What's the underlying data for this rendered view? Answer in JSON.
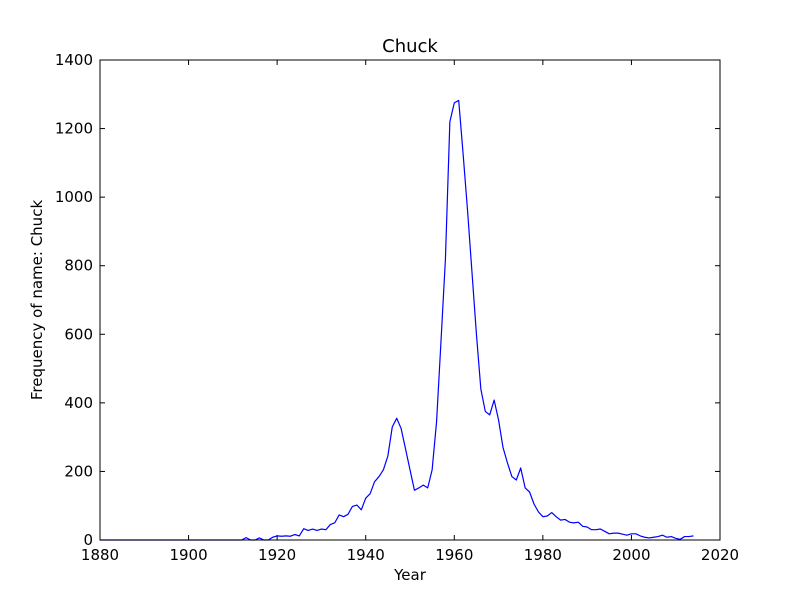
{
  "chart_data": {
    "type": "line",
    "title": "Chuck",
    "xlabel": "Year",
    "ylabel": "Frequency of name: Chuck",
    "xlim": [
      1880,
      2020
    ],
    "ylim": [
      0,
      1400
    ],
    "x_ticks": [
      1880,
      1900,
      1920,
      1940,
      1960,
      1980,
      2000,
      2020
    ],
    "y_ticks": [
      0,
      200,
      400,
      600,
      800,
      1000,
      1200,
      1400
    ],
    "grid": false,
    "line_color": "#0000ff",
    "series": [
      {
        "x": [
          1880,
          1881,
          1882,
          1883,
          1884,
          1885,
          1886,
          1887,
          1888,
          1889,
          1890,
          1891,
          1892,
          1893,
          1894,
          1895,
          1896,
          1897,
          1898,
          1899,
          1900,
          1901,
          1902,
          1903,
          1904,
          1905,
          1906,
          1907,
          1908,
          1909,
          1910,
          1911,
          1912,
          1913,
          1914,
          1915,
          1916,
          1917,
          1918,
          1919,
          1920,
          1921,
          1922,
          1923,
          1924,
          1925,
          1926,
          1927,
          1928,
          1929,
          1930,
          1931,
          1932,
          1933,
          1934,
          1935,
          1936,
          1937,
          1938,
          1939,
          1940,
          1941,
          1942,
          1943,
          1944,
          1945,
          1946,
          1947,
          1948,
          1949,
          1950,
          1951,
          1952,
          1953,
          1954,
          1955,
          1956,
          1957,
          1958,
          1959,
          1960,
          1961,
          1962,
          1963,
          1964,
          1965,
          1966,
          1967,
          1968,
          1969,
          1970,
          1971,
          1972,
          1973,
          1974,
          1975,
          1976,
          1977,
          1978,
          1979,
          1980,
          1981,
          1982,
          1983,
          1984,
          1985,
          1986,
          1987,
          1988,
          1989,
          1990,
          1991,
          1992,
          1993,
          1994,
          1995,
          1996,
          1997,
          1998,
          1999,
          2000,
          2001,
          2002,
          2003,
          2004,
          2005,
          2006,
          2007,
          2008,
          2009,
          2010,
          2011,
          2012,
          2013,
          2014
        ],
        "values": [
          0,
          0,
          0,
          0,
          0,
          0,
          0,
          0,
          0,
          0,
          0,
          0,
          0,
          0,
          0,
          0,
          0,
          0,
          0,
          0,
          0,
          0,
          0,
          0,
          0,
          0,
          0,
          0,
          0,
          0,
          0,
          0,
          0,
          7,
          0,
          0,
          6,
          0,
          0,
          8,
          12,
          11,
          12,
          11,
          16,
          12,
          33,
          28,
          32,
          28,
          32,
          30,
          45,
          50,
          73,
          68,
          75,
          98,
          102,
          88,
          122,
          135,
          170,
          185,
          205,
          245,
          330,
          355,
          325,
          265,
          205,
          145,
          152,
          160,
          152,
          205,
          345,
          580,
          820,
          1220,
          1275,
          1282,
          1125,
          960,
          780,
          600,
          440,
          375,
          365,
          408,
          350,
          270,
          225,
          185,
          175,
          210,
          152,
          140,
          105,
          82,
          68,
          70,
          80,
          68,
          58,
          60,
          52,
          50,
          52,
          40,
          38,
          30,
          30,
          32,
          25,
          18,
          20,
          20,
          17,
          14,
          18,
          18,
          12,
          8,
          6,
          8,
          10,
          14,
          8,
          10,
          5,
          2,
          10,
          10,
          12
        ]
      }
    ]
  }
}
